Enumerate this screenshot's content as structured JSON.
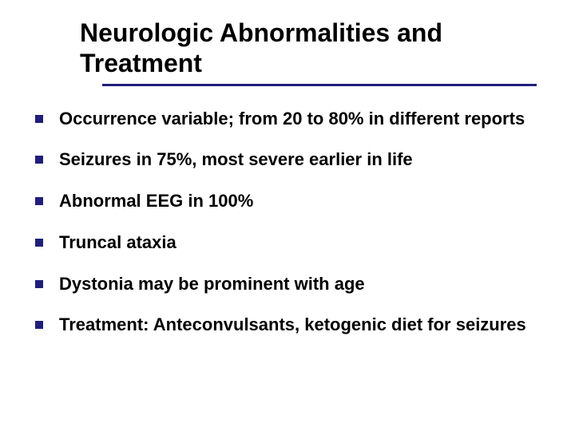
{
  "slide": {
    "title": "Neurologic Abnormalities and Treatment",
    "bullets": [
      "Occurrence variable; from 20 to 80% in different reports",
      "Seizures in 75%, most severe earlier in life",
      "Abnormal EEG in 100%",
      "Truncal ataxia",
      "Dystonia may be prominent with age",
      "Treatment:   Anteconvulsants, ketogenic diet for seizures"
    ],
    "colors": {
      "background": "#ffffff",
      "text": "#000000",
      "accent": "#1f1f7a"
    },
    "typography": {
      "title_fontsize": 32,
      "body_fontsize": 22,
      "font_family": "Verdana",
      "font_weight": "bold"
    }
  }
}
